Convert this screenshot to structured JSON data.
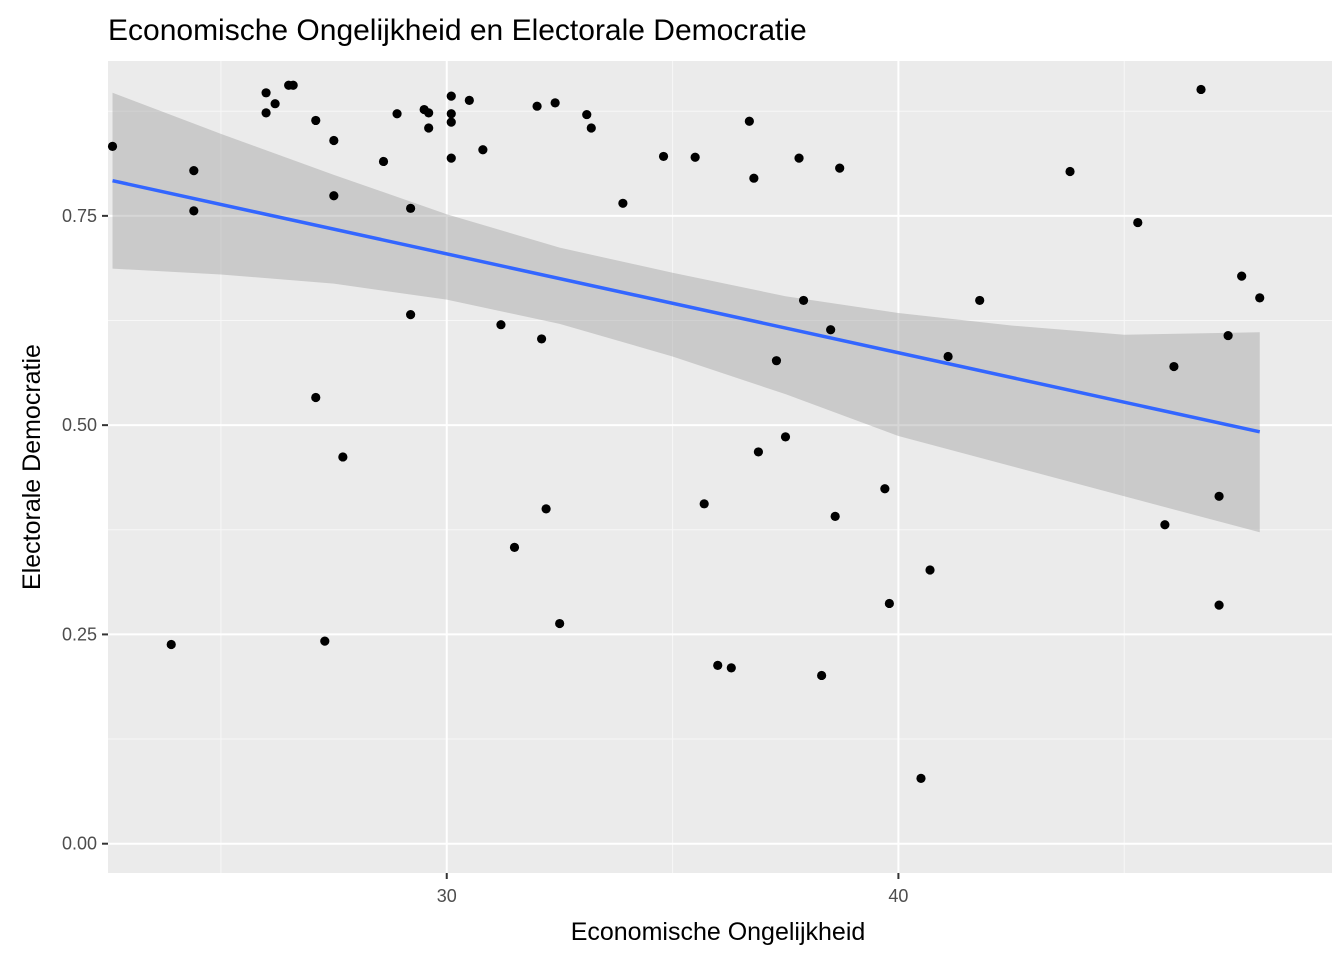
{
  "chart_data": {
    "type": "scatter",
    "title": "Economische Ongelijkheid en Electorale Democratie",
    "xlabel": "Economische Ongelijkheid",
    "ylabel": "Electorale Democratie",
    "xlim": [
      22.5,
      49.6
    ],
    "ylim": [
      -0.035,
      0.935
    ],
    "x_ticks": [
      30,
      40
    ],
    "x_tick_labels": [
      "30",
      "40"
    ],
    "y_ticks": [
      0.0,
      0.25,
      0.5,
      0.75
    ],
    "y_tick_labels": [
      "0.00",
      "0.25",
      "0.50",
      "0.75"
    ],
    "grid": true,
    "legend": "none",
    "colors": {
      "panel": "#ebebeb",
      "grid_major": "#ffffff",
      "grid_minor": "#f7f7f7",
      "points": "#000000",
      "fit_line": "#3366ff",
      "ci_band": "#999999"
    },
    "points": [
      {
        "x": 22.6,
        "y": 0.833
      },
      {
        "x": 23.9,
        "y": 0.238
      },
      {
        "x": 24.4,
        "y": 0.804
      },
      {
        "x": 24.4,
        "y": 0.756
      },
      {
        "x": 26.0,
        "y": 0.897
      },
      {
        "x": 26.0,
        "y": 0.873
      },
      {
        "x": 26.2,
        "y": 0.884
      },
      {
        "x": 26.5,
        "y": 0.906
      },
      {
        "x": 26.6,
        "y": 0.906
      },
      {
        "x": 27.1,
        "y": 0.864
      },
      {
        "x": 27.1,
        "y": 0.533
      },
      {
        "x": 27.3,
        "y": 0.242
      },
      {
        "x": 27.5,
        "y": 0.84
      },
      {
        "x": 27.5,
        "y": 0.774
      },
      {
        "x": 27.7,
        "y": 0.462
      },
      {
        "x": 28.6,
        "y": 0.815
      },
      {
        "x": 28.9,
        "y": 0.872
      },
      {
        "x": 29.2,
        "y": 0.759
      },
      {
        "x": 29.2,
        "y": 0.632
      },
      {
        "x": 29.5,
        "y": 0.877
      },
      {
        "x": 29.6,
        "y": 0.873
      },
      {
        "x": 29.6,
        "y": 0.855
      },
      {
        "x": 30.1,
        "y": 0.893
      },
      {
        "x": 30.1,
        "y": 0.872
      },
      {
        "x": 30.1,
        "y": 0.862
      },
      {
        "x": 30.1,
        "y": 0.819
      },
      {
        "x": 30.5,
        "y": 0.888
      },
      {
        "x": 30.8,
        "y": 0.829
      },
      {
        "x": 31.2,
        "y": 0.62
      },
      {
        "x": 31.5,
        "y": 0.354
      },
      {
        "x": 32.0,
        "y": 0.881
      },
      {
        "x": 32.1,
        "y": 0.603
      },
      {
        "x": 32.2,
        "y": 0.4
      },
      {
        "x": 32.4,
        "y": 0.885
      },
      {
        "x": 32.5,
        "y": 0.263
      },
      {
        "x": 33.1,
        "y": 0.871
      },
      {
        "x": 33.2,
        "y": 0.855
      },
      {
        "x": 33.9,
        "y": 0.765
      },
      {
        "x": 34.8,
        "y": 0.821
      },
      {
        "x": 35.5,
        "y": 0.82
      },
      {
        "x": 35.7,
        "y": 0.406
      },
      {
        "x": 36.0,
        "y": 0.213
      },
      {
        "x": 36.3,
        "y": 0.21
      },
      {
        "x": 36.7,
        "y": 0.863
      },
      {
        "x": 36.8,
        "y": 0.795
      },
      {
        "x": 36.9,
        "y": 0.468
      },
      {
        "x": 37.3,
        "y": 0.577
      },
      {
        "x": 37.5,
        "y": 0.486
      },
      {
        "x": 37.8,
        "y": 0.819
      },
      {
        "x": 37.9,
        "y": 0.649
      },
      {
        "x": 38.3,
        "y": 0.201
      },
      {
        "x": 38.5,
        "y": 0.614
      },
      {
        "x": 38.6,
        "y": 0.391
      },
      {
        "x": 38.7,
        "y": 0.807
      },
      {
        "x": 39.7,
        "y": 0.424
      },
      {
        "x": 39.8,
        "y": 0.287
      },
      {
        "x": 40.5,
        "y": 0.078
      },
      {
        "x": 40.7,
        "y": 0.327
      },
      {
        "x": 41.1,
        "y": 0.582
      },
      {
        "x": 41.8,
        "y": 0.649
      },
      {
        "x": 43.8,
        "y": 0.803
      },
      {
        "x": 45.3,
        "y": 0.742
      },
      {
        "x": 45.9,
        "y": 0.381
      },
      {
        "x": 46.1,
        "y": 0.57
      },
      {
        "x": 46.7,
        "y": 0.901
      },
      {
        "x": 47.1,
        "y": 0.415
      },
      {
        "x": 47.1,
        "y": 0.285
      },
      {
        "x": 47.3,
        "y": 0.607
      },
      {
        "x": 47.6,
        "y": 0.678
      },
      {
        "x": 48.0,
        "y": 0.652
      }
    ],
    "fit": {
      "method": "lm",
      "x": [
        22.6,
        48.0
      ],
      "y": [
        0.792,
        0.492
      ]
    },
    "ci_band": {
      "x": [
        22.6,
        25.0,
        27.5,
        30.0,
        32.5,
        35.0,
        37.5,
        40.0,
        42.5,
        45.0,
        48.0
      ],
      "lower": [
        0.687,
        0.68,
        0.669,
        0.65,
        0.621,
        0.582,
        0.537,
        0.487,
        0.451,
        0.415,
        0.372
      ],
      "upper": [
        0.897,
        0.848,
        0.799,
        0.752,
        0.712,
        0.682,
        0.654,
        0.634,
        0.619,
        0.608,
        0.611
      ]
    }
  }
}
